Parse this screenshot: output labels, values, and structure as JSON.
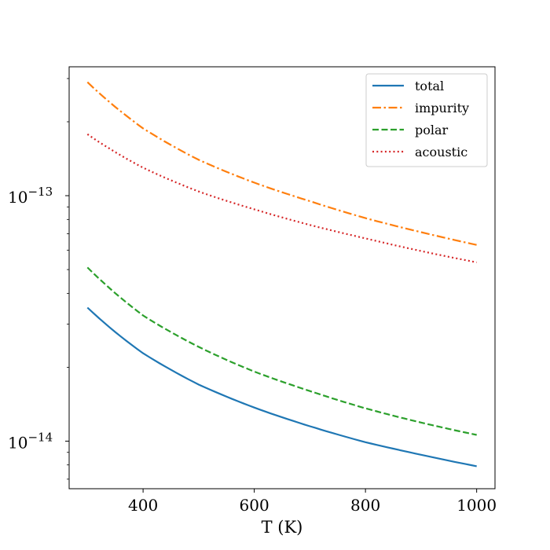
{
  "chart_data": {
    "type": "line",
    "title": "",
    "xlabel": "T (K)",
    "ylabel": "",
    "xlim": [
      267,
      1033
    ],
    "ylim": [
      6.4e-15,
      3.35e-13
    ],
    "yscale": "log",
    "grid": false,
    "legend_position": "top-right",
    "x_ticks": [
      400,
      600,
      800,
      1000
    ],
    "x_tick_labels": [
      "400",
      "600",
      "800",
      "1000"
    ],
    "y_major_ticks": [
      1e-14,
      1e-13
    ],
    "y_tick_labels": [
      {
        "base": "10",
        "exp": "−14"
      },
      {
        "base": "10",
        "exp": "−13"
      }
    ],
    "y_minor_ticks": [
      7e-15,
      8e-15,
      9e-15,
      2e-14,
      3e-14,
      4e-14,
      5e-14,
      6e-14,
      7e-14,
      8e-14,
      9e-14,
      2e-13,
      3e-13
    ],
    "series": [
      {
        "name": "total",
        "color": "#1f77b4",
        "style": "solid",
        "x": [
          300,
          400,
          500,
          600,
          700,
          800,
          900,
          1000
        ],
        "y": [
          3.5e-14,
          2.28e-14,
          1.7e-14,
          1.37e-14,
          1.15e-14,
          9.9e-15,
          8.8e-15,
          7.9e-15
        ]
      },
      {
        "name": "impurity",
        "color": "#ff7f0e",
        "style": "dashdot",
        "x": [
          300,
          400,
          500,
          600,
          700,
          800,
          900,
          1000
        ],
        "y": [
          2.9e-13,
          1.88e-13,
          1.4e-13,
          1.13e-13,
          9.5e-14,
          8.1e-14,
          7.1e-14,
          6.3e-14
        ]
      },
      {
        "name": "polar",
        "color": "#2ca02c",
        "style": "dashed",
        "x": [
          300,
          400,
          500,
          600,
          700,
          800,
          900,
          1000
        ],
        "y": [
          5.1e-14,
          3.25e-14,
          2.42e-14,
          1.92e-14,
          1.6e-14,
          1.36e-14,
          1.19e-14,
          1.06e-14
        ]
      },
      {
        "name": "acoustic",
        "color": "#d62728",
        "style": "dotted",
        "x": [
          300,
          400,
          500,
          600,
          700,
          800,
          900,
          1000
        ],
        "y": [
          1.78e-13,
          1.3e-13,
          1.04e-13,
          8.8e-14,
          7.6e-14,
          6.7e-14,
          5.95e-14,
          5.35e-14
        ]
      }
    ]
  }
}
